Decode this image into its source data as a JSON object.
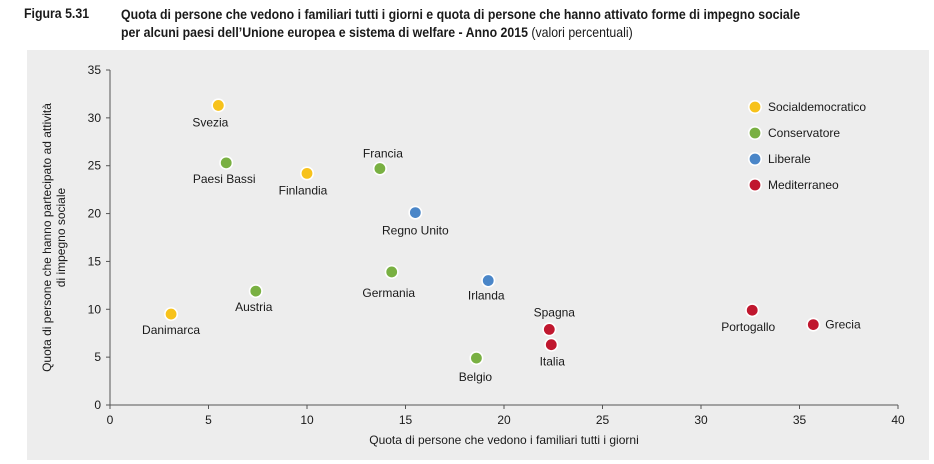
{
  "header": {
    "figure_label": "Figura 5.31",
    "title_line1": "Quota di persone che vedono i familiari tutti i giorni e quota di persone che hanno attivato forme di impegno sociale",
    "title_line2": "per alcuni paesi dell’Unione europea e sistema di welfare - Anno 2015",
    "title_unit": "(valori percentuali)"
  },
  "chart_data": {
    "type": "scatter",
    "title": "Quota di persone che vedono i familiari tutti i giorni e quota di persone che hanno attivato forme di impegno sociale per alcuni paesi dell’Unione europea e sistema di welfare - Anno 2015",
    "xlabel": "Quota di persone che vedono  i familiari tutti i giorni",
    "ylabel_line1": "Quota di persone che hanno partecipato ad attività",
    "ylabel_line2": "di impegno sociale",
    "xlim": [
      0,
      40
    ],
    "ylim": [
      0,
      35
    ],
    "x_ticks": [
      0,
      5,
      10,
      15,
      20,
      25,
      30,
      35,
      40
    ],
    "y_ticks": [
      0,
      5,
      10,
      15,
      20,
      25,
      30,
      35
    ],
    "grid": false,
    "legend_position": "top-right",
    "series": [
      {
        "name": "Socialdemocratico",
        "color": "#f7c21b",
        "points": [
          {
            "label": "Svezia",
            "x": 5.5,
            "y": 31.3
          },
          {
            "label": "Finlandia",
            "x": 10.0,
            "y": 24.2
          },
          {
            "label": "Danimarca",
            "x": 3.1,
            "y": 9.5
          }
        ]
      },
      {
        "name": "Conservatore",
        "color": "#79b042",
        "points": [
          {
            "label": "Paesi Bassi",
            "x": 5.9,
            "y": 25.3
          },
          {
            "label": "Francia",
            "x": 13.7,
            "y": 24.7
          },
          {
            "label": "Germania",
            "x": 14.3,
            "y": 13.9
          },
          {
            "label": "Austria",
            "x": 7.4,
            "y": 11.9
          },
          {
            "label": "Belgio",
            "x": 18.6,
            "y": 4.9
          }
        ]
      },
      {
        "name": "Liberale",
        "color": "#4a86c8",
        "points": [
          {
            "label": "Regno Unito",
            "x": 15.5,
            "y": 20.1
          },
          {
            "label": "Irlanda",
            "x": 19.2,
            "y": 13.0
          }
        ]
      },
      {
        "name": "Mediterraneo",
        "color": "#c0172e",
        "points": [
          {
            "label": "Spagna",
            "x": 22.3,
            "y": 7.9
          },
          {
            "label": "Italia",
            "x": 22.4,
            "y": 6.3
          },
          {
            "label": "Portogallo",
            "x": 32.6,
            "y": 9.9
          },
          {
            "label": "Grecia",
            "x": 35.7,
            "y": 8.4
          }
        ]
      }
    ]
  }
}
